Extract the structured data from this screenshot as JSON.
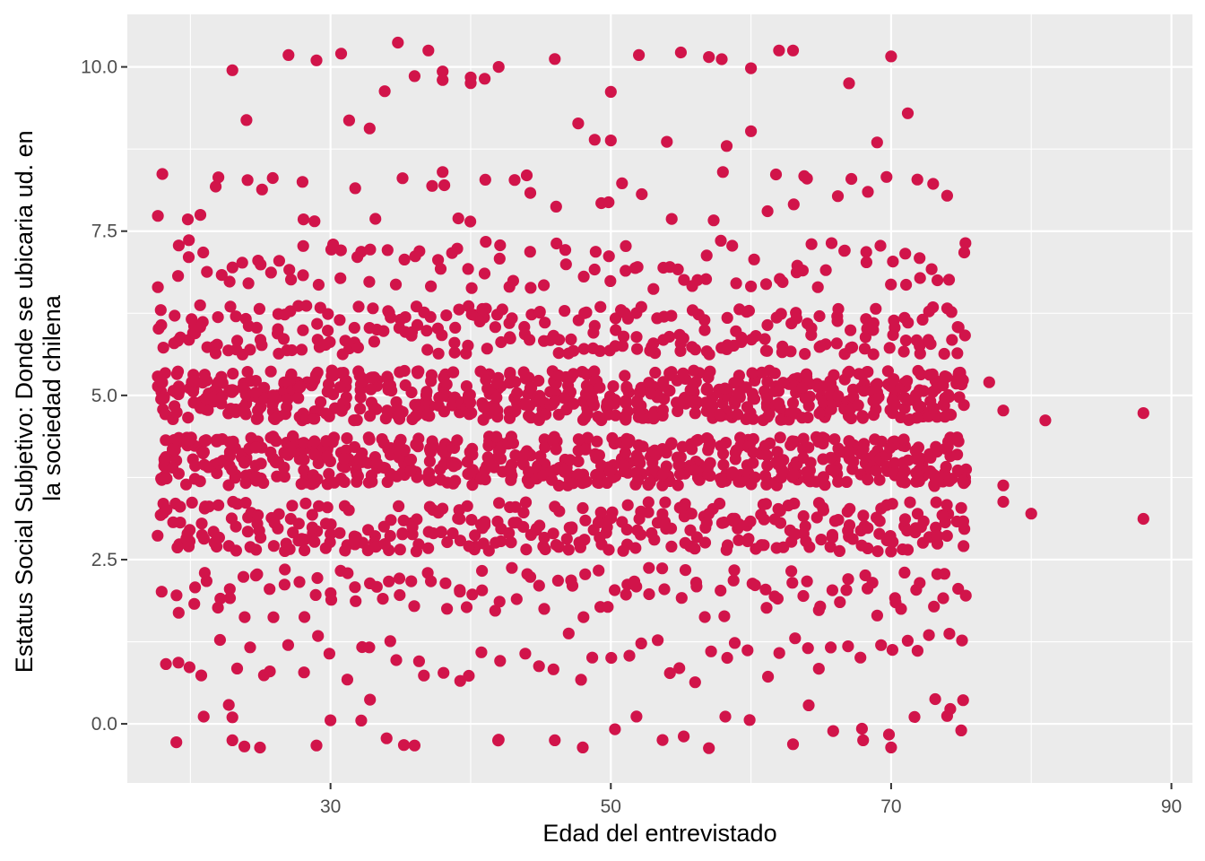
{
  "chart_data": {
    "type": "scatter",
    "title": "",
    "xlabel": "Edad del entrevistado",
    "ylabel_lines": [
      "Estatus Social Subjetivo: Donde se ubicaria ud. en",
      "la sociedad chilena"
    ],
    "xlim": [
      15.5,
      91.5
    ],
    "ylim": [
      -0.9,
      10.8
    ],
    "x_ticks": [
      30,
      50,
      70,
      90
    ],
    "x_tick_labels": [
      "30",
      "50",
      "70",
      "90"
    ],
    "y_ticks": [
      0.0,
      2.5,
      5.0,
      7.5,
      10.0
    ],
    "y_tick_labels": [
      "0.0",
      "2.5",
      "5.0",
      "7.5",
      "10.0"
    ],
    "x_minor": [
      20,
      40,
      60,
      80
    ],
    "y_minor": [
      1.25,
      3.75,
      6.25,
      8.75
    ],
    "grid": true,
    "legend": "none",
    "colors": {
      "point": "#d1144a",
      "panel": "#ebebeb",
      "grid": "#ffffff"
    },
    "jitter": {
      "x_range": [
        18,
        75
      ],
      "x_spread": 0.35,
      "y_spread": 0.38
    },
    "level_weights": {
      "0": 0.3,
      "1": 0.8,
      "2": 1.6,
      "3": 4.5,
      "4": 8.5,
      "5": 9.0,
      "6": 3.5,
      "7": 1.5,
      "8": 0.5,
      "9": 0.05,
      "10": 0.15
    },
    "points_per_age_weight": 1.2,
    "points": [
      {
        "x": 77,
        "y": 5.2
      },
      {
        "x": 78,
        "y": 4.77
      },
      {
        "x": 78,
        "y": 3.63
      },
      {
        "x": 78,
        "y": 3.38
      },
      {
        "x": 80,
        "y": 3.2
      },
      {
        "x": 81,
        "y": 4.62
      },
      {
        "x": 88,
        "y": 4.73
      },
      {
        "x": 88,
        "y": 3.12
      },
      {
        "x": 23,
        "y": 9.95
      },
      {
        "x": 27,
        "y": 10.18
      },
      {
        "x": 29,
        "y": 10.1
      },
      {
        "x": 36,
        "y": 9.86
      },
      {
        "x": 38,
        "y": 9.93
      },
      {
        "x": 38,
        "y": 9.8
      },
      {
        "x": 40,
        "y": 9.84
      },
      {
        "x": 41,
        "y": 9.82
      },
      {
        "x": 42,
        "y": 10.0
      },
      {
        "x": 46,
        "y": 10.12
      },
      {
        "x": 50,
        "y": 9.62
      },
      {
        "x": 52,
        "y": 10.18
      },
      {
        "x": 55,
        "y": 10.22
      },
      {
        "x": 57,
        "y": 10.15
      },
      {
        "x": 60,
        "y": 9.98
      },
      {
        "x": 62,
        "y": 10.25
      },
      {
        "x": 63,
        "y": 10.25
      },
      {
        "x": 67,
        "y": 9.75
      },
      {
        "x": 70,
        "y": 10.16
      },
      {
        "x": 24,
        "y": 9.19
      },
      {
        "x": 50,
        "y": 8.88
      },
      {
        "x": 54,
        "y": 8.86
      },
      {
        "x": 69,
        "y": 8.85
      },
      {
        "x": 18,
        "y": 8.37
      },
      {
        "x": 22,
        "y": 8.32
      },
      {
        "x": 28,
        "y": 8.25
      },
      {
        "x": 38,
        "y": 8.4
      },
      {
        "x": 44,
        "y": 8.35
      },
      {
        "x": 58,
        "y": 8.4
      },
      {
        "x": 64,
        "y": 8.3
      },
      {
        "x": 73,
        "y": 8.22
      },
      {
        "x": 74,
        "y": 8.04
      },
      {
        "x": 23,
        "y": 0.1
      },
      {
        "x": 23,
        "y": -0.25
      },
      {
        "x": 19,
        "y": -0.28
      },
      {
        "x": 29,
        "y": -0.33
      },
      {
        "x": 34,
        "y": -0.22
      },
      {
        "x": 36,
        "y": -0.33
      },
      {
        "x": 42,
        "y": -0.24
      },
      {
        "x": 46,
        "y": -0.25
      },
      {
        "x": 48,
        "y": -0.36
      },
      {
        "x": 57,
        "y": -0.37
      },
      {
        "x": 63,
        "y": -0.31
      },
      {
        "x": 68,
        "y": -0.25
      },
      {
        "x": 70,
        "y": -0.36
      },
      {
        "x": 74,
        "y": 0.12
      },
      {
        "x": 75,
        "y": -0.1
      }
    ]
  }
}
